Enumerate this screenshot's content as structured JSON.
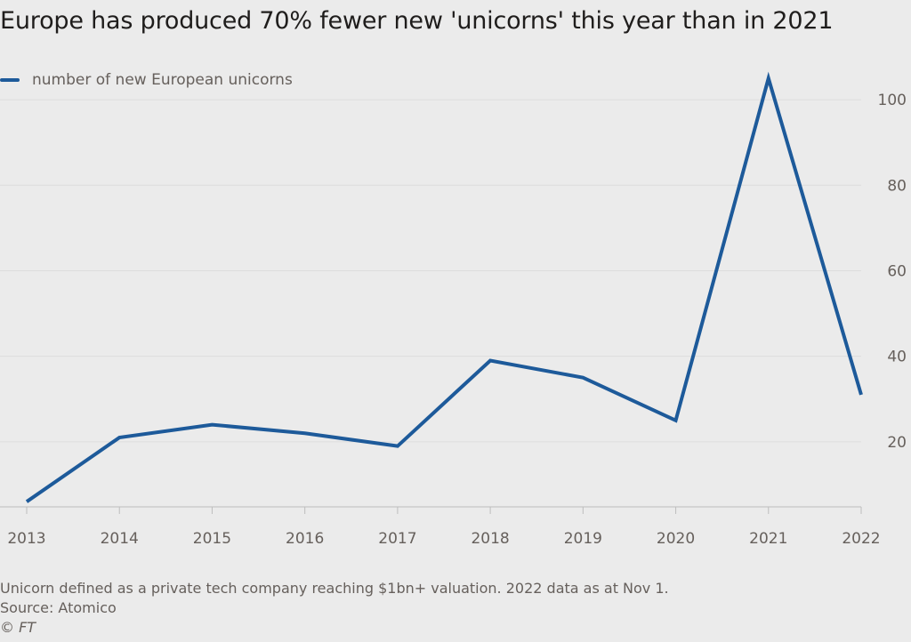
{
  "title": "Europe has produced 70% fewer new 'unicorns' this year than in 2021",
  "legend": {
    "label": "number of new European unicorns"
  },
  "colors": {
    "series": "#1d5a9a",
    "grid": "#dcdcdc",
    "axis": "#bdbdbd",
    "background": "#ebebeb"
  },
  "footnotes": {
    "note": "Unicorn defined as a private tech company reaching $1bn+ valuation. 2022 data as at Nov 1.",
    "source": "Source: Atomico",
    "copyright": "© FT"
  },
  "chart_data": {
    "type": "line",
    "title": "Europe has produced 70% fewer new 'unicorns' this year than in 2021",
    "xlabel": "",
    "ylabel": "",
    "categories": [
      "2013",
      "2014",
      "2015",
      "2016",
      "2017",
      "2018",
      "2019",
      "2020",
      "2021",
      "2022"
    ],
    "series": [
      {
        "name": "number of new European unicorns",
        "values": [
          6,
          21,
          24,
          22,
          19,
          39,
          35,
          25,
          105,
          31
        ]
      }
    ],
    "ylim": [
      5,
      110
    ],
    "yticks": [
      20,
      40,
      60,
      80,
      100
    ],
    "y_axis_side": "right",
    "grid": true,
    "legend_position": "top-left"
  }
}
